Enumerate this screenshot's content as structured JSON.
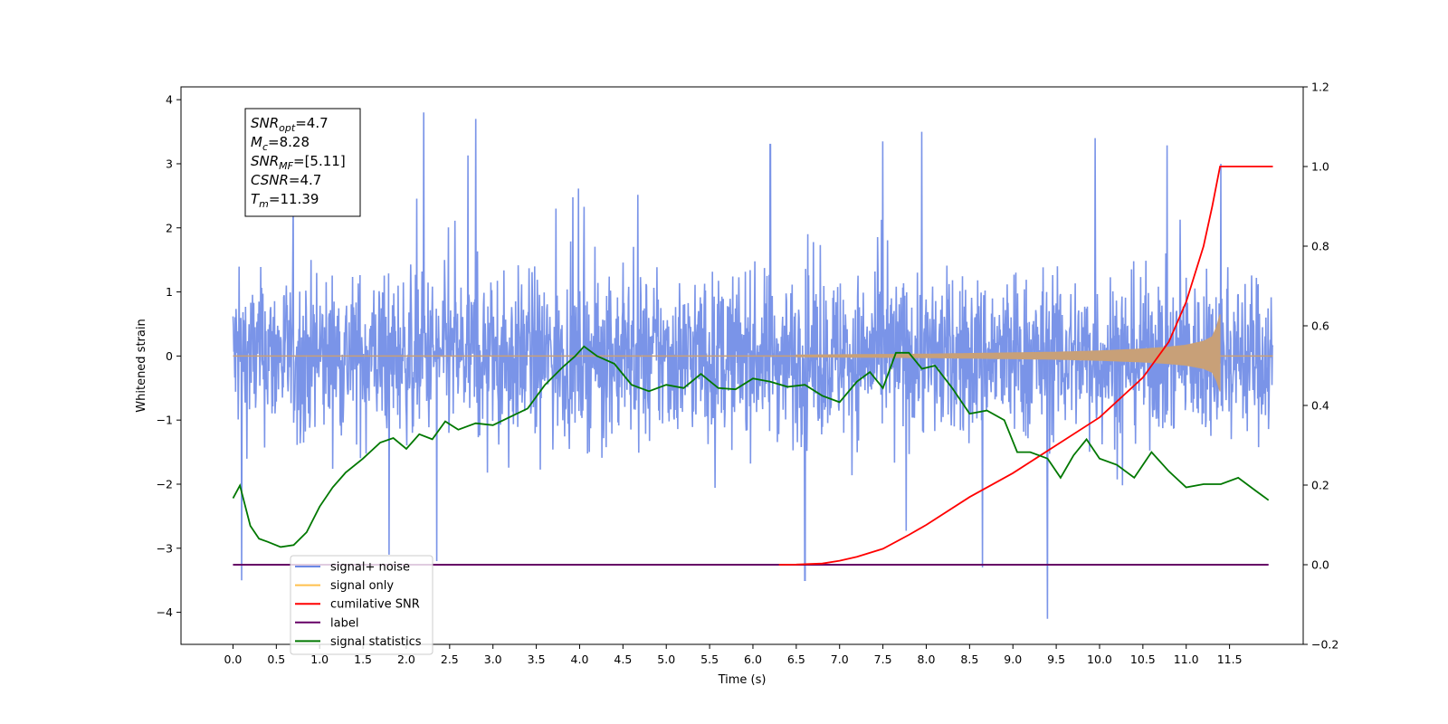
{
  "chart_data": {
    "type": "line",
    "xlabel": "Time (s)",
    "ylabel": "Whitened strain",
    "xlim": [
      -0.6,
      12.35
    ],
    "ylim": [
      -4.5,
      4.2
    ],
    "ylim_right": [
      -0.2,
      1.2
    ],
    "x_ticks": [
      "0.0",
      "0.5",
      "1.0",
      "1.5",
      "2.0",
      "2.5",
      "3.0",
      "3.5",
      "4.0",
      "4.5",
      "5.0",
      "5.5",
      "6.0",
      "6.5",
      "7.0",
      "7.5",
      "8.0",
      "8.5",
      "9.0",
      "9.5",
      "10.0",
      "10.5",
      "11.0",
      "11.5"
    ],
    "y_ticks_left": [
      "4",
      "3",
      "2",
      "1",
      "0",
      "−1",
      "−2",
      "−3",
      "−4"
    ],
    "y_ticks_right": [
      "1.2",
      "1.0",
      "0.8",
      "0.6",
      "0.4",
      "0.2",
      "0.0",
      "−0.2"
    ],
    "info_box": [
      {
        "base": "SNR",
        "sub": "opt",
        "rest": "=4.7"
      },
      {
        "base": "M",
        "sub": "c",
        "rest": "=8.28"
      },
      {
        "base": "SNR",
        "sub": "MF",
        "rest": "=[5.11]"
      },
      {
        "base": "CSNR",
        "sub": "",
        "rest": "=4.7"
      },
      {
        "base": "T",
        "sub": "m",
        "rest": "=11.39"
      }
    ],
    "legend": {
      "placement": "lower-left",
      "entries": [
        {
          "label": "signal+ noise",
          "color": "#6b88e5"
        },
        {
          "label": "signal only",
          "color": "#ffc04d"
        },
        {
          "label": "cumilative SNR",
          "color": "#ff0000"
        },
        {
          "label": "label",
          "color": "#660066"
        },
        {
          "label": "signal statistics",
          "color": "#007800"
        }
      ]
    },
    "series": [
      {
        "name": "signal+ noise",
        "axis": "left",
        "color": "#6b88e5",
        "x_range": [
          0.0,
          12.0
        ],
        "typical_range": [
          -1.8,
          1.8
        ],
        "spikes": [
          {
            "x": 0.1,
            "y": -3.5
          },
          {
            "x": 1.8,
            "y": -3.1
          },
          {
            "x": 2.2,
            "y": 3.8
          },
          {
            "x": 2.35,
            "y": -3.2
          },
          {
            "x": 2.8,
            "y": 3.7
          },
          {
            "x": 6.2,
            "y": 3.3
          },
          {
            "x": 6.6,
            "y": -3.5
          },
          {
            "x": 7.5,
            "y": 3.35
          },
          {
            "x": 7.95,
            "y": 3.5
          },
          {
            "x": 8.65,
            "y": -3.3
          },
          {
            "x": 9.4,
            "y": -4.1
          },
          {
            "x": 9.95,
            "y": 3.4
          },
          {
            "x": 11.4,
            "y": 3.0
          }
        ]
      },
      {
        "name": "signal only",
        "axis": "left",
        "color": "#c8a078",
        "x": [
          0.0,
          6.0,
          7.0,
          8.0,
          8.5,
          9.0,
          9.5,
          10.0,
          10.5,
          10.8,
          11.0,
          11.2,
          11.3,
          11.35,
          11.39,
          11.4,
          12.0
        ],
        "amplitude": [
          0.0,
          0.01,
          0.02,
          0.03,
          0.04,
          0.05,
          0.06,
          0.08,
          0.11,
          0.14,
          0.17,
          0.23,
          0.3,
          0.45,
          0.65,
          0.0,
          0.0
        ]
      },
      {
        "name": "cumilative SNR",
        "axis": "right",
        "color": "#ff0000",
        "x": [
          6.3,
          6.5,
          6.8,
          7.0,
          7.2,
          7.5,
          7.8,
          8.0,
          8.5,
          9.0,
          9.5,
          10.0,
          10.5,
          10.8,
          11.0,
          11.2,
          11.3,
          11.39,
          12.0
        ],
        "y": [
          0.0,
          0.0005,
          0.003,
          0.01,
          0.02,
          0.04,
          0.075,
          0.1,
          0.17,
          0.23,
          0.3,
          0.37,
          0.47,
          0.56,
          0.66,
          0.8,
          0.9,
          1.0,
          1.0
        ]
      },
      {
        "name": "label",
        "axis": "right",
        "color": "#660066",
        "x": [
          0.0,
          11.95
        ],
        "y": [
          0.0,
          0.0
        ]
      },
      {
        "name": "signal statistics",
        "axis": "left",
        "color": "#007800",
        "x": [
          0.0,
          0.08,
          0.2,
          0.3,
          0.4,
          0.55,
          0.7,
          0.85,
          1.0,
          1.15,
          1.3,
          1.5,
          1.7,
          1.85,
          2.0,
          2.15,
          2.3,
          2.45,
          2.6,
          2.8,
          3.0,
          3.2,
          3.4,
          3.6,
          3.8,
          3.95,
          4.05,
          4.2,
          4.4,
          4.6,
          4.8,
          5.0,
          5.2,
          5.4,
          5.6,
          5.8,
          6.0,
          6.2,
          6.4,
          6.6,
          6.8,
          7.0,
          7.2,
          7.35,
          7.5,
          7.65,
          7.8,
          7.95,
          8.1,
          8.3,
          8.5,
          8.7,
          8.9,
          9.05,
          9.2,
          9.4,
          9.55,
          9.7,
          9.85,
          10.0,
          10.2,
          10.4,
          10.6,
          10.8,
          11.0,
          11.2,
          11.4,
          11.6,
          11.8,
          11.9,
          11.95
        ],
        "y": [
          -2.22,
          -2.02,
          -2.65,
          -2.85,
          -2.9,
          -2.98,
          -2.95,
          -2.75,
          -2.35,
          -2.05,
          -1.82,
          -1.6,
          -1.35,
          -1.28,
          -1.45,
          -1.22,
          -1.3,
          -1.02,
          -1.15,
          -1.05,
          -1.08,
          -0.95,
          -0.82,
          -0.45,
          -0.18,
          0.0,
          0.15,
          0.0,
          -0.12,
          -0.45,
          -0.55,
          -0.45,
          -0.5,
          -0.28,
          -0.5,
          -0.52,
          -0.35,
          -0.4,
          -0.48,
          -0.45,
          -0.62,
          -0.72,
          -0.4,
          -0.25,
          -0.5,
          0.05,
          0.05,
          -0.2,
          -0.15,
          -0.5,
          -0.9,
          -0.85,
          -1.0,
          -1.5,
          -1.5,
          -1.6,
          -1.9,
          -1.55,
          -1.3,
          -1.6,
          -1.7,
          -1.9,
          -1.5,
          -1.8,
          -2.05,
          -2.0,
          -2.0,
          -1.9,
          -2.1,
          -2.2,
          -2.25
        ]
      }
    ]
  }
}
